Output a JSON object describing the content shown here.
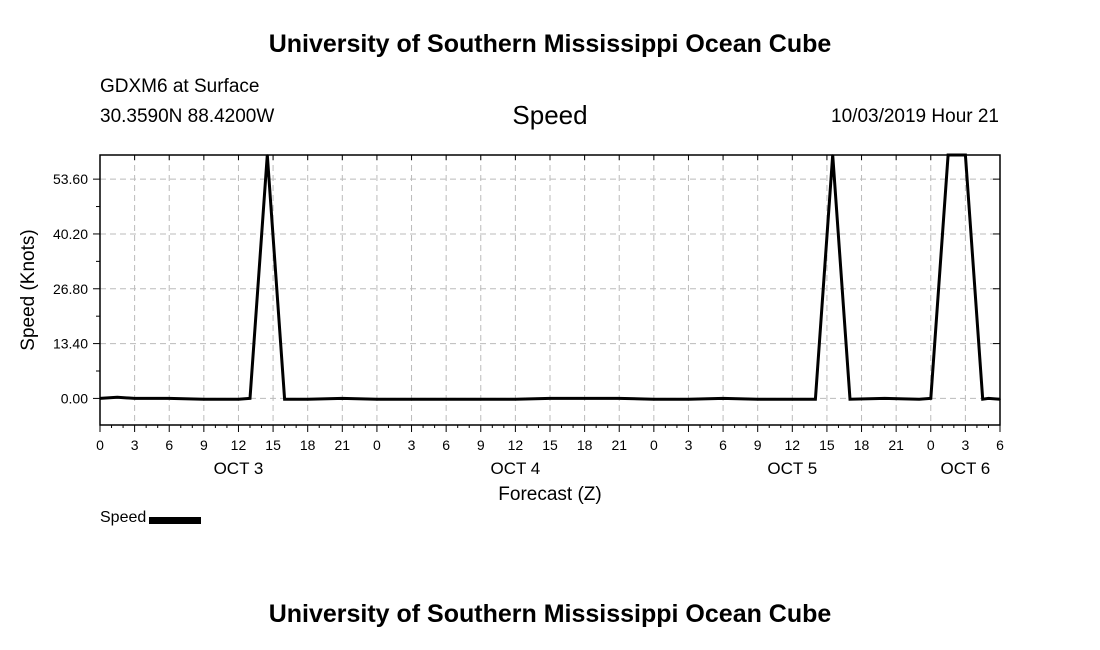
{
  "header": {
    "title": "University of Southern Mississippi Ocean Cube",
    "station": "GDXM6 at Surface",
    "coords": "30.3590N 88.4200W",
    "variable": "Speed",
    "datetime": "10/03/2019 Hour 21"
  },
  "footer": {
    "title": "University of Southern Mississippi Ocean Cube"
  },
  "legend": {
    "label": "Speed",
    "color": "#000000"
  },
  "chart_data": {
    "type": "line",
    "title": "Speed",
    "xlabel": "Forecast (Z)",
    "ylabel": "Speed (Knots)",
    "x_unit": "hours from OCT 3 00Z",
    "xlim": [
      0,
      78
    ],
    "ylim": [
      -6.5,
      59.5
    ],
    "yticks": [
      0,
      13.4,
      26.8,
      40.2,
      53.6
    ],
    "ytick_labels": [
      "0.00",
      "13.40",
      "26.80",
      "40.20",
      "53.60"
    ],
    "xticks": [
      0,
      3,
      6,
      9,
      12,
      15,
      18,
      21,
      24,
      27,
      30,
      33,
      36,
      39,
      42,
      45,
      48,
      51,
      54,
      57,
      60,
      63,
      66,
      69,
      72,
      75,
      78
    ],
    "xtick_labels": [
      "0",
      "3",
      "6",
      "9",
      "12",
      "15",
      "18",
      "21",
      "0",
      "3",
      "6",
      "9",
      "12",
      "15",
      "18",
      "21",
      "0",
      "3",
      "6",
      "9",
      "12",
      "15",
      "18",
      "21",
      "0",
      "3",
      "6"
    ],
    "day_labels": [
      {
        "label": "OCT 3",
        "x": 12
      },
      {
        "label": "OCT 4",
        "x": 36
      },
      {
        "label": "OCT 5",
        "x": 60
      },
      {
        "label": "OCT 6",
        "x": 75
      }
    ],
    "grid": true,
    "series": [
      {
        "name": "Speed",
        "color": "#000000",
        "x": [
          0,
          1.5,
          3,
          6,
          9,
          12,
          13,
          14.5,
          16,
          18,
          21,
          24,
          27,
          30,
          33,
          36,
          39,
          42,
          45,
          48,
          51,
          54,
          57,
          60,
          62,
          63.5,
          65,
          68,
          71,
          72,
          73.5,
          75,
          76.5,
          77,
          78
        ],
        "y": [
          0,
          0.3,
          0,
          0,
          -0.2,
          -0.2,
          0,
          59.5,
          -0.2,
          -0.2,
          0,
          -0.2,
          -0.2,
          -0.2,
          -0.2,
          -0.2,
          0,
          0,
          0,
          -0.2,
          -0.2,
          0,
          -0.2,
          -0.2,
          -0.2,
          59.5,
          -0.2,
          0,
          -0.2,
          0,
          59.5,
          59.5,
          -0.2,
          0,
          -0.2
        ]
      }
    ]
  }
}
